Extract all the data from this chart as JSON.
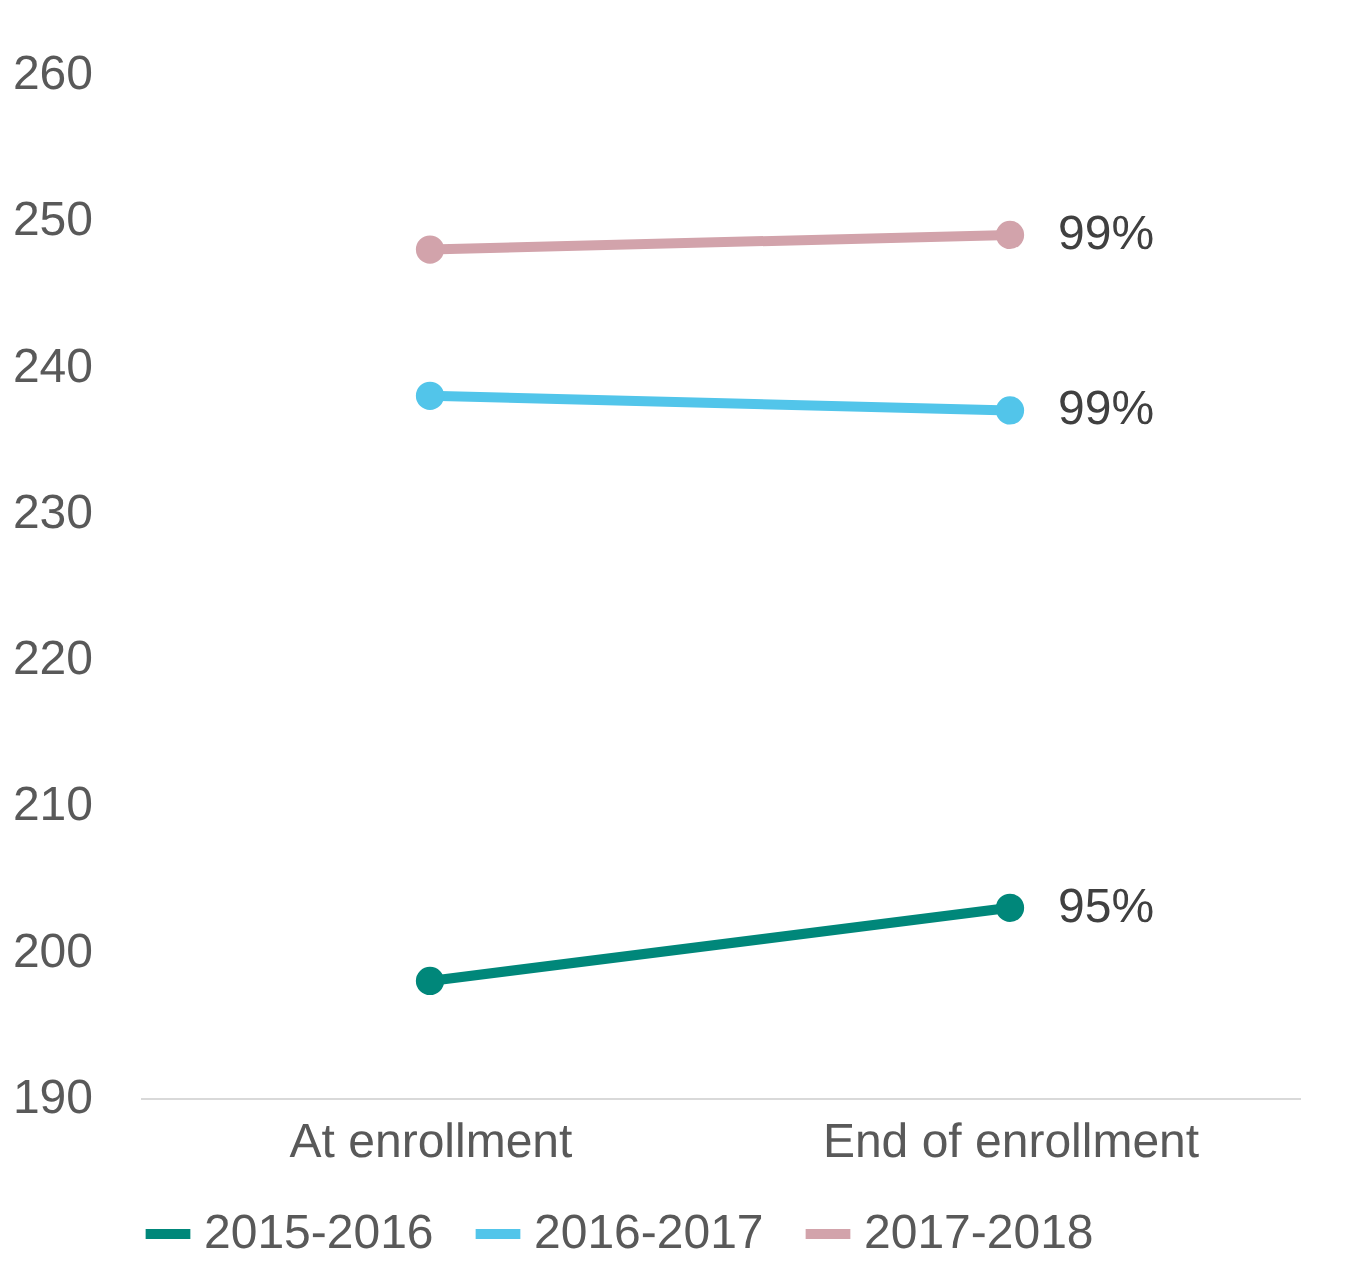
{
  "chart_data": {
    "type": "line",
    "categories": [
      "At enrollment",
      "End of enrollment"
    ],
    "series": [
      {
        "name": "2015-2016",
        "color": "#00877a",
        "values": [
          198,
          203
        ]
      },
      {
        "name": "2016-2017",
        "color": "#52c5ea",
        "values": [
          238,
          237
        ]
      },
      {
        "name": "2017-2018",
        "color": "#d2a3ab",
        "values": [
          248,
          249
        ]
      }
    ],
    "annotations": [
      {
        "text": "95%",
        "x": "End of enrollment",
        "y": 203
      },
      {
        "text": "99%",
        "x": "End of enrollment",
        "y": 237
      },
      {
        "text": "99%",
        "x": "End of enrollment",
        "y": 249
      }
    ],
    "ylim": [
      190,
      260
    ],
    "yticks": [
      190,
      200,
      210,
      220,
      230,
      240,
      250,
      260
    ],
    "grid": false,
    "legend": "bottom",
    "marker": "circle",
    "line_style": "solid"
  }
}
